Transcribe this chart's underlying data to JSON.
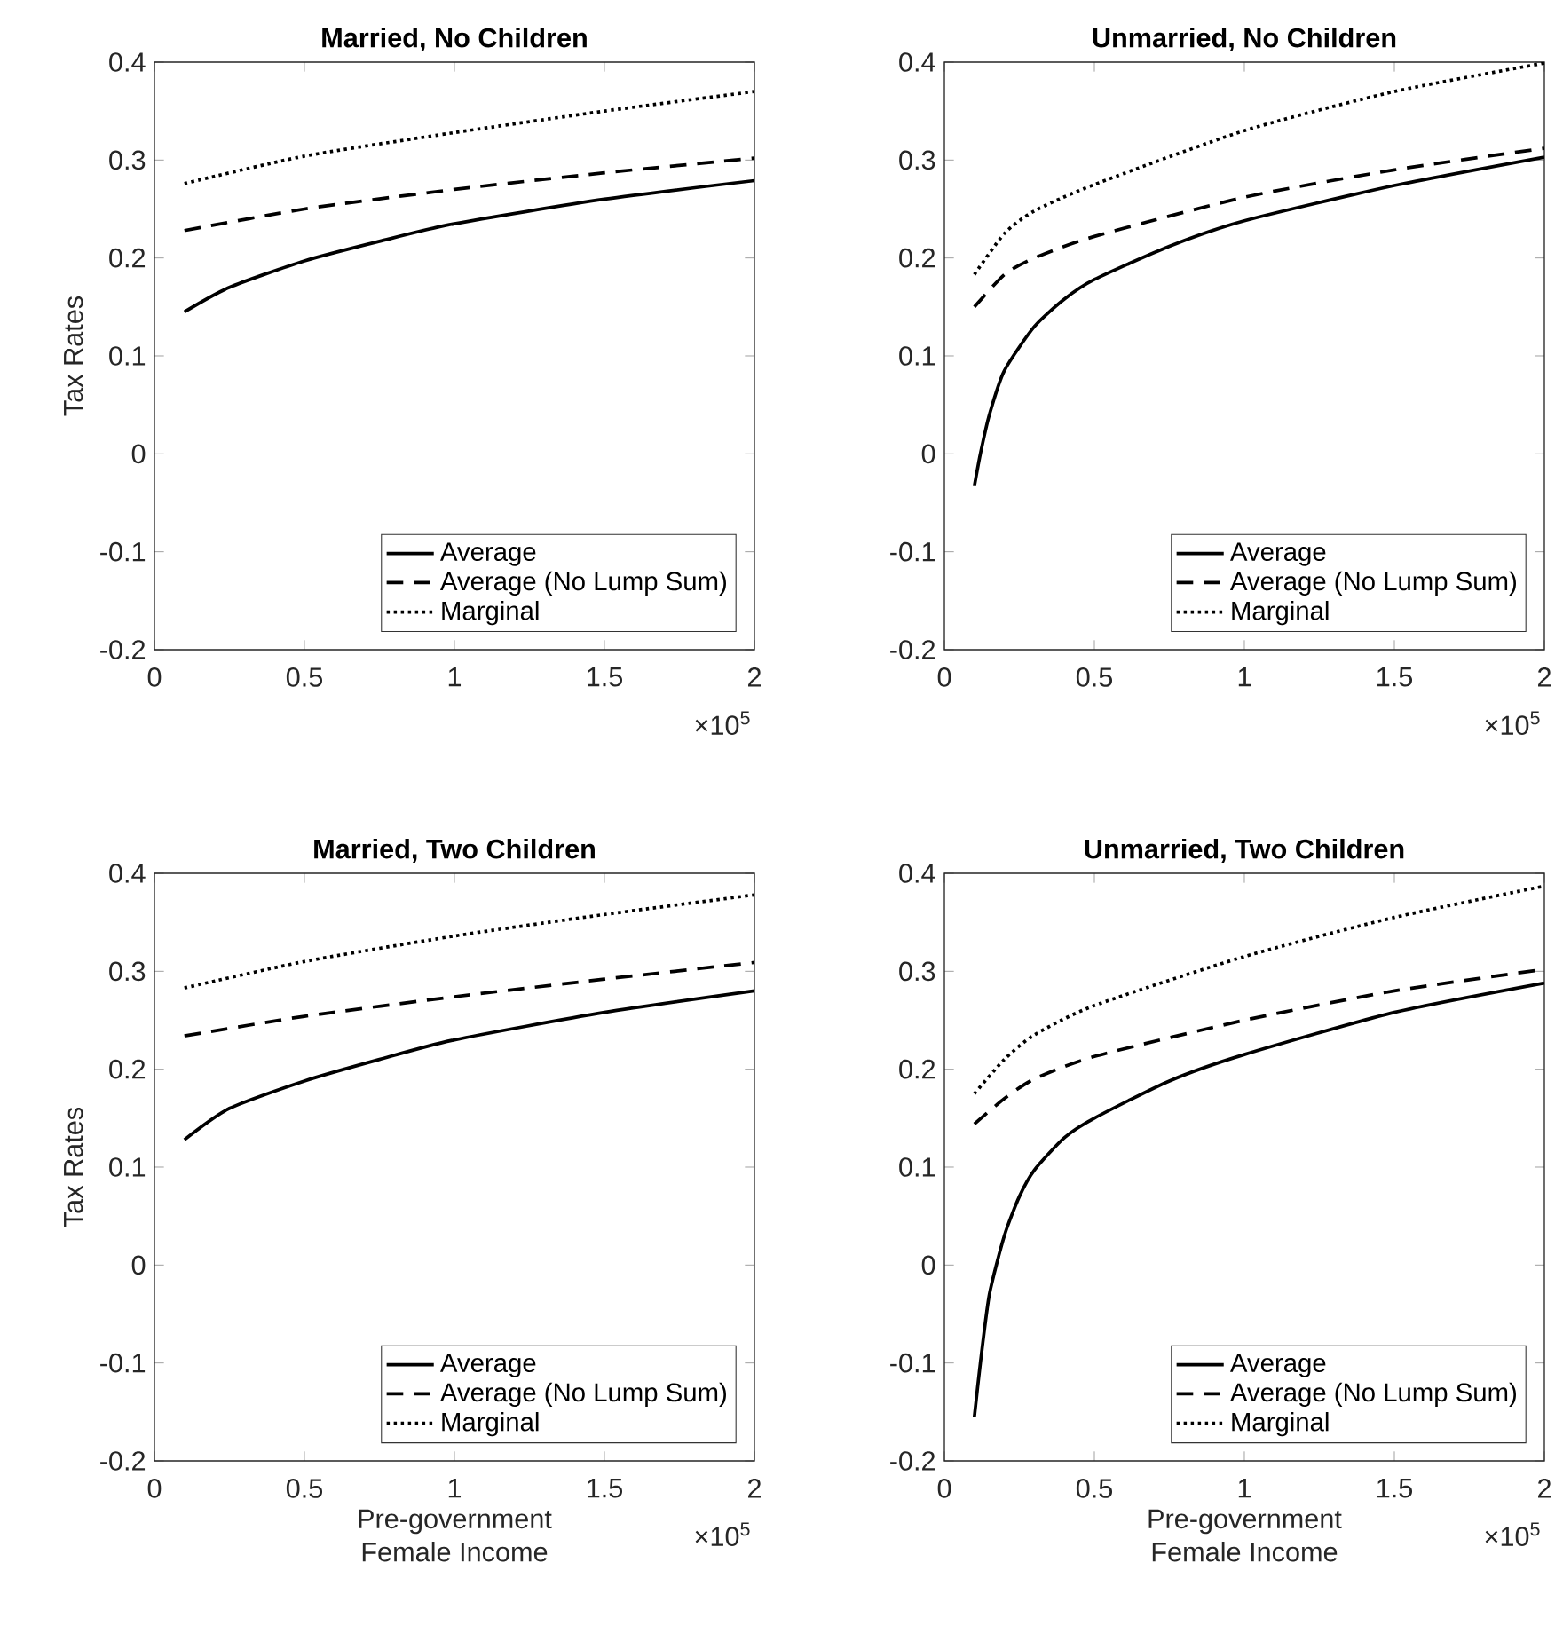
{
  "chart_data": [
    {
      "type": "line",
      "title": "Married, No Children",
      "ylabel": "Tax Rates",
      "xlim": [
        0,
        2
      ],
      "ylim": [
        -0.2,
        0.4
      ],
      "xticks": [
        0,
        0.5,
        1,
        1.5,
        2
      ],
      "yticks": [
        -0.2,
        -0.1,
        0,
        0.1,
        0.2,
        0.3,
        0.4
      ],
      "grid": false,
      "legend": "bottom right",
      "annotations": [
        "×10$^{5}$"
      ],
      "series": [
        {
          "name": "Average",
          "color": "#000000",
          "line_style": "solid",
          "x": [
            0.1,
            0.25,
            0.5,
            0.75,
            1,
            1.5,
            2
          ],
          "values": [
            0.145,
            0.17,
            0.197,
            0.217,
            0.235,
            0.26,
            0.279
          ]
        },
        {
          "name": "Average (No Lump Sum)",
          "color": "#000000",
          "line_style": "dashed",
          "x": [
            0.1,
            0.5,
            1,
            1.5,
            2
          ],
          "values": [
            0.228,
            0.25,
            0.27,
            0.287,
            0.302
          ]
        },
        {
          "name": "Marginal",
          "color": "#000000",
          "line_style": "dotted",
          "x": [
            0.1,
            0.5,
            1,
            1.5,
            2
          ],
          "values": [
            0.276,
            0.304,
            0.328,
            0.35,
            0.37
          ]
        }
      ]
    },
    {
      "type": "line",
      "title": "Unmarried, No Children",
      "xlim": [
        0,
        2
      ],
      "ylim": [
        -0.2,
        0.4
      ],
      "xticks": [
        0,
        0.5,
        1,
        1.5,
        2
      ],
      "yticks": [
        -0.2,
        -0.1,
        0,
        0.1,
        0.2,
        0.3,
        0.4
      ],
      "grid": false,
      "legend": "bottom right",
      "annotations": [
        "×10$^{5}$"
      ],
      "series": [
        {
          "name": "Average",
          "color": "#000000",
          "line_style": "solid",
          "x": [
            0.1,
            0.12,
            0.15,
            0.2,
            0.3,
            0.4,
            0.5,
            0.75,
            1,
            1.5,
            2
          ],
          "values": [
            -0.033,
            0.0,
            0.04,
            0.085,
            0.13,
            0.158,
            0.178,
            0.212,
            0.238,
            0.274,
            0.303
          ]
        },
        {
          "name": "Average (No Lump Sum)",
          "color": "#000000",
          "line_style": "dashed",
          "x": [
            0.1,
            0.2,
            0.3,
            0.5,
            1,
            1.5,
            2
          ],
          "values": [
            0.15,
            0.183,
            0.2,
            0.222,
            0.262,
            0.29,
            0.312
          ]
        },
        {
          "name": "Marginal",
          "color": "#000000",
          "line_style": "dotted",
          "x": [
            0.1,
            0.2,
            0.3,
            0.5,
            1,
            1.5,
            2
          ],
          "values": [
            0.183,
            0.225,
            0.248,
            0.275,
            0.33,
            0.37,
            0.399
          ]
        }
      ]
    },
    {
      "type": "line",
      "title": "Married, Two Children",
      "xlabel": "Pre-government\nFemale Income",
      "ylabel": "Tax Rates",
      "xlim": [
        0,
        2
      ],
      "ylim": [
        -0.2,
        0.4
      ],
      "xticks": [
        0,
        0.5,
        1,
        1.5,
        2
      ],
      "yticks": [
        -0.2,
        -0.1,
        0,
        0.1,
        0.2,
        0.3,
        0.4
      ],
      "grid": false,
      "legend": "bottom right",
      "annotations": [
        "×10$^{5}$"
      ],
      "series": [
        {
          "name": "Average",
          "color": "#000000",
          "line_style": "solid",
          "x": [
            0.1,
            0.25,
            0.5,
            0.75,
            1,
            1.5,
            2
          ],
          "values": [
            0.128,
            0.16,
            0.188,
            0.21,
            0.23,
            0.258,
            0.28
          ]
        },
        {
          "name": "Average (No Lump Sum)",
          "color": "#000000",
          "line_style": "dashed",
          "x": [
            0.1,
            0.5,
            1,
            1.5,
            2
          ],
          "values": [
            0.234,
            0.254,
            0.274,
            0.292,
            0.309
          ]
        },
        {
          "name": "Marginal",
          "color": "#000000",
          "line_style": "dotted",
          "x": [
            0.1,
            0.5,
            1,
            1.5,
            2
          ],
          "values": [
            0.283,
            0.31,
            0.336,
            0.358,
            0.378
          ]
        }
      ]
    },
    {
      "type": "line",
      "title": "Unmarried, Two Children",
      "xlabel": "Pre-government\nFemale Income",
      "xlim": [
        0,
        2
      ],
      "ylim": [
        -0.2,
        0.4
      ],
      "xticks": [
        0,
        0.5,
        1,
        1.5,
        2
      ],
      "yticks": [
        -0.2,
        -0.1,
        0,
        0.1,
        0.2,
        0.3,
        0.4
      ],
      "grid": false,
      "legend": "bottom right",
      "annotations": [
        "×10$^{5}$"
      ],
      "series": [
        {
          "name": "Average",
          "color": "#000000",
          "line_style": "solid",
          "x": [
            0.1,
            0.12,
            0.15,
            0.2,
            0.25,
            0.3,
            0.4,
            0.5,
            0.75,
            1,
            1.5,
            2
          ],
          "values": [
            -0.155,
            -0.1,
            -0.03,
            0.03,
            0.07,
            0.097,
            0.13,
            0.15,
            0.188,
            0.215,
            0.258,
            0.288
          ]
        },
        {
          "name": "Average (No Lump Sum)",
          "color": "#000000",
          "line_style": "dashed",
          "x": [
            0.1,
            0.2,
            0.3,
            0.5,
            1,
            1.5,
            2
          ],
          "values": [
            0.144,
            0.17,
            0.19,
            0.213,
            0.25,
            0.28,
            0.302
          ]
        },
        {
          "name": "Marginal",
          "color": "#000000",
          "line_style": "dotted",
          "x": [
            0.1,
            0.2,
            0.3,
            0.5,
            1,
            1.5,
            2
          ],
          "values": [
            0.175,
            0.21,
            0.235,
            0.265,
            0.315,
            0.355,
            0.387
          ]
        }
      ]
    }
  ]
}
